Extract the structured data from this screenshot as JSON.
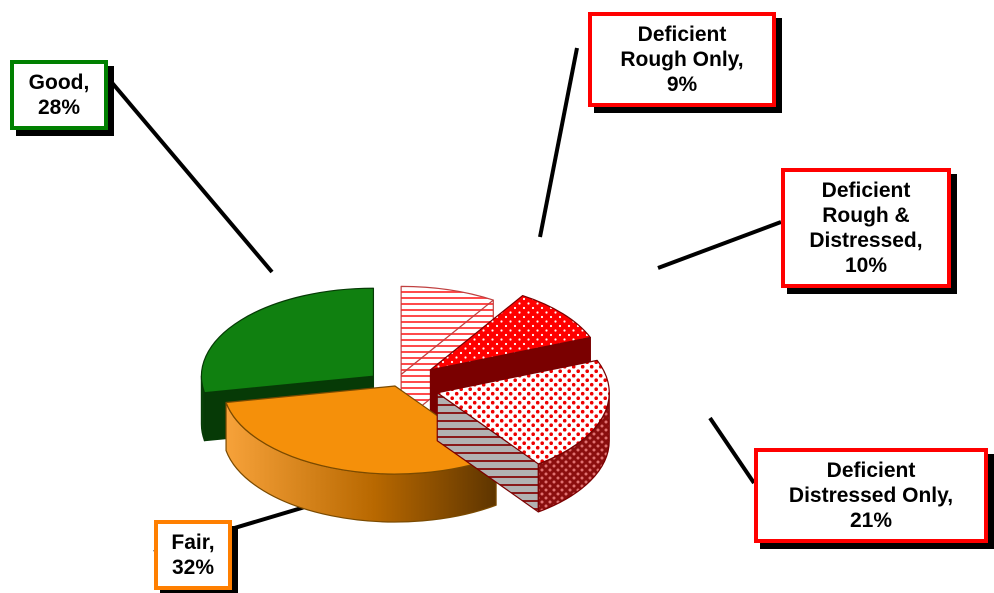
{
  "chart_data": {
    "type": "pie",
    "categories": [
      "Deficient Rough Only",
      "Deficient Rough & Distressed",
      "Deficient Distressed Only",
      "Fair",
      "Good"
    ],
    "values": [
      9,
      10,
      21,
      32,
      28
    ],
    "unit": "%",
    "labels": [
      {
        "lines": [
          "Deficient",
          "Rough Only,",
          "9%"
        ],
        "border_color": "#ff0000"
      },
      {
        "lines": [
          "Deficient",
          "Rough &",
          "Distressed,",
          "10%"
        ],
        "border_color": "#ff0000"
      },
      {
        "lines": [
          "Deficient",
          "Distressed Only,",
          "21%"
        ],
        "border_color": "#ff0000"
      },
      {
        "lines": [
          "Fair,",
          "32%"
        ],
        "border_color": "#ff7f00"
      },
      {
        "lines": [
          "Good,",
          "28%"
        ],
        "border_color": "#008000"
      }
    ],
    "colors": [
      "#ff7777",
      "#ff0000",
      "#ff3030",
      "#f5900a",
      "#108010"
    ],
    "exploded": true,
    "three_d": true
  }
}
